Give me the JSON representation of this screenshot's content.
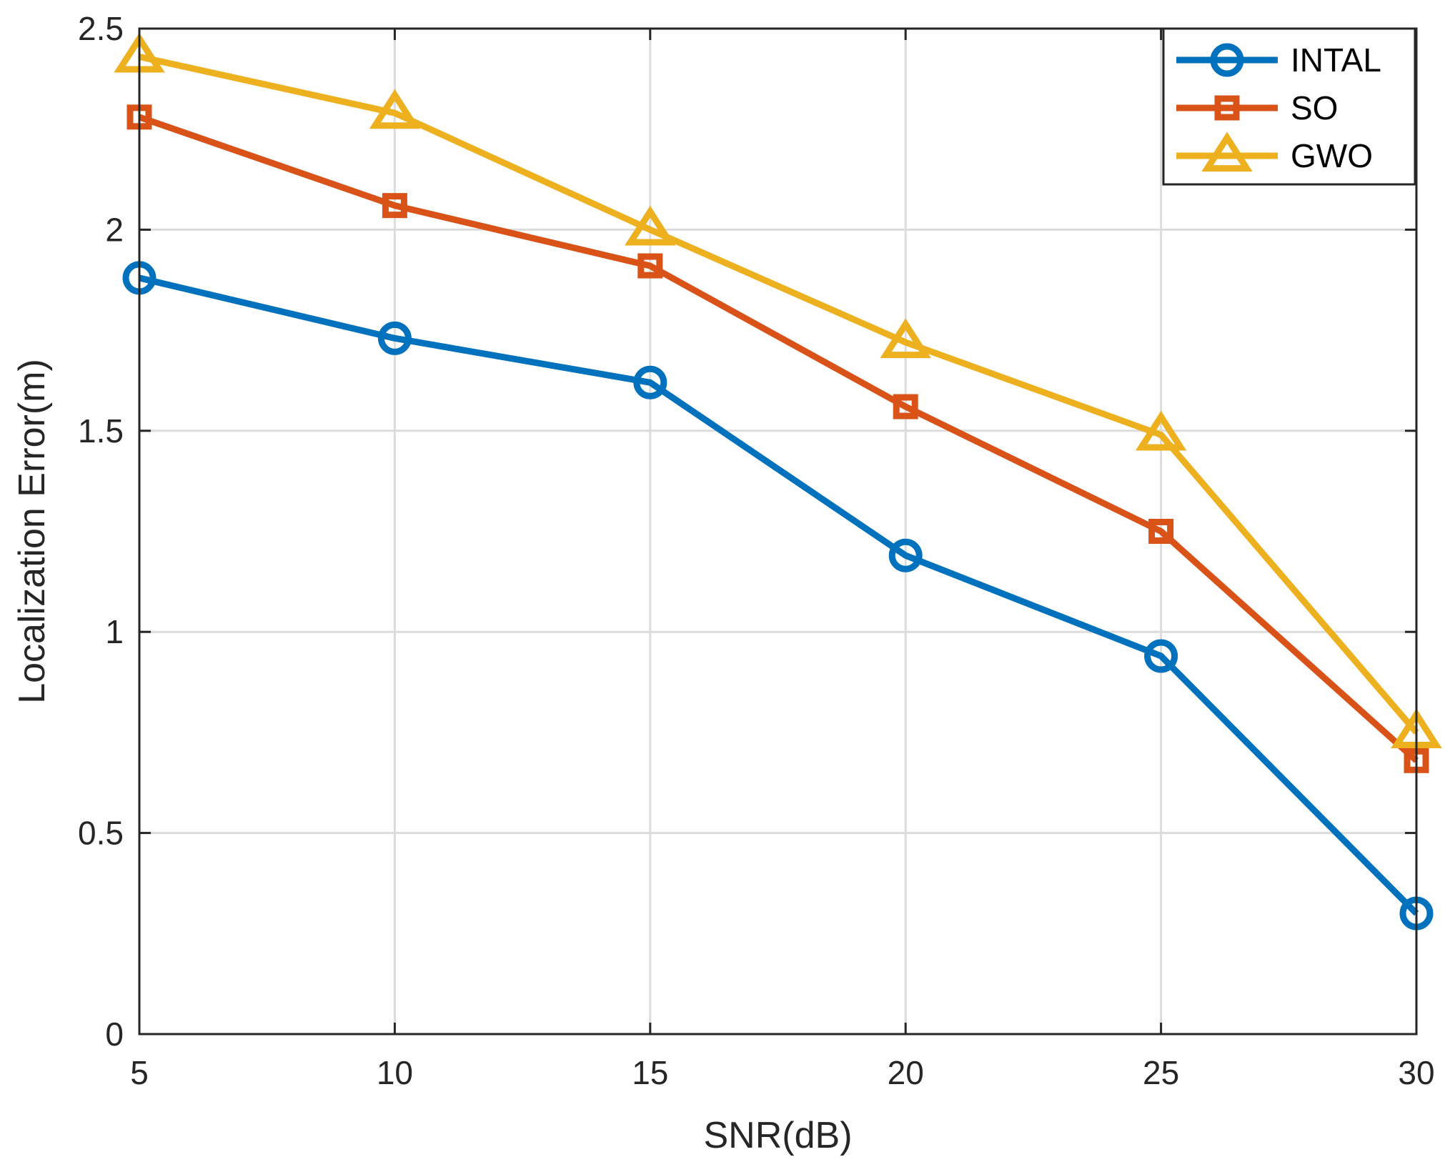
{
  "chart_data": {
    "type": "line",
    "title": "",
    "xlabel": "SNR(dB)",
    "ylabel": "Localization Error(m)",
    "x": [
      5,
      10,
      15,
      20,
      25,
      30
    ],
    "xlim": [
      5,
      30
    ],
    "ylim": [
      0,
      2.5
    ],
    "xticks": [
      5,
      10,
      15,
      20,
      25,
      30
    ],
    "yticks": [
      0,
      0.5,
      1,
      1.5,
      2,
      2.5
    ],
    "xtick_labels": [
      "5",
      "10",
      "15",
      "20",
      "25",
      "30"
    ],
    "ytick_labels": [
      "0",
      "0.5",
      "1",
      "1.5",
      "2",
      "2.5"
    ],
    "grid": true,
    "legend_position": "top-right",
    "series": [
      {
        "name": "INTAL",
        "marker": "circle",
        "color": "#0072BD",
        "values": [
          1.88,
          1.73,
          1.62,
          1.19,
          0.94,
          0.3
        ]
      },
      {
        "name": "SO",
        "marker": "square",
        "color": "#D95319",
        "values": [
          2.28,
          2.06,
          1.91,
          1.56,
          1.25,
          0.68
        ]
      },
      {
        "name": "GWO",
        "marker": "triangle",
        "color": "#EDB120",
        "values": [
          2.43,
          2.29,
          2.0,
          1.72,
          1.49,
          0.75
        ]
      }
    ]
  }
}
